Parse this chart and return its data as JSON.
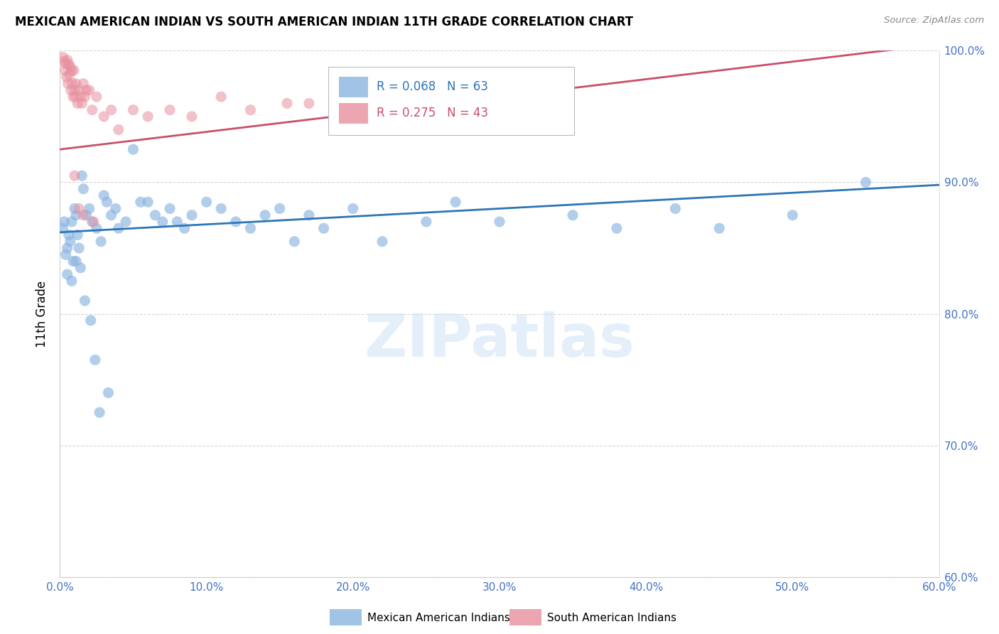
{
  "title": "MEXICAN AMERICAN INDIAN VS SOUTH AMERICAN INDIAN 11TH GRADE CORRELATION CHART",
  "source": "Source: ZipAtlas.com",
  "ylabel": "11th Grade",
  "xlim": [
    0.0,
    60.0
  ],
  "ylim": [
    60.0,
    100.0
  ],
  "blue_R": 0.068,
  "blue_N": 63,
  "pink_R": 0.275,
  "pink_N": 43,
  "blue_color": "#8ab4e0",
  "pink_color": "#e8909f",
  "blue_line_color": "#2e75b6",
  "pink_line_color": "#c94f6a",
  "legend_label_blue": "Mexican American Indians",
  "legend_label_pink": "South American Indians",
  "watermark": "ZIPatlas",
  "blue_x": [
    0.2,
    0.3,
    0.4,
    0.5,
    0.6,
    0.7,
    0.8,
    0.9,
    1.0,
    1.1,
    1.2,
    1.3,
    1.5,
    1.6,
    1.8,
    2.0,
    2.2,
    2.5,
    2.8,
    3.0,
    3.2,
    3.5,
    3.8,
    4.0,
    4.5,
    5.0,
    5.5,
    6.0,
    6.5,
    7.0,
    7.5,
    8.0,
    8.5,
    9.0,
    10.0,
    11.0,
    12.0,
    13.0,
    14.0,
    15.0,
    16.0,
    17.0,
    18.0,
    20.0,
    22.0,
    25.0,
    27.0,
    30.0,
    35.0,
    38.0,
    42.0,
    45.0,
    50.0,
    55.0,
    0.5,
    0.8,
    1.1,
    1.4,
    1.7,
    2.1,
    2.4,
    2.7,
    3.3
  ],
  "blue_y": [
    86.5,
    87.0,
    84.5,
    85.0,
    86.0,
    85.5,
    87.0,
    84.0,
    88.0,
    87.5,
    86.0,
    85.0,
    90.5,
    89.5,
    87.5,
    88.0,
    87.0,
    86.5,
    85.5,
    89.0,
    88.5,
    87.5,
    88.0,
    86.5,
    87.0,
    92.5,
    88.5,
    88.5,
    87.5,
    87.0,
    88.0,
    87.0,
    86.5,
    87.5,
    88.5,
    88.0,
    87.0,
    86.5,
    87.5,
    88.0,
    85.5,
    87.5,
    86.5,
    88.0,
    85.5,
    87.0,
    88.5,
    87.0,
    87.5,
    86.5,
    88.0,
    86.5,
    87.5,
    90.0,
    83.0,
    82.5,
    84.0,
    83.5,
    81.0,
    79.5,
    76.5,
    72.5,
    74.0
  ],
  "pink_x": [
    0.2,
    0.3,
    0.35,
    0.4,
    0.45,
    0.5,
    0.55,
    0.6,
    0.65,
    0.7,
    0.75,
    0.8,
    0.85,
    0.9,
    0.95,
    1.0,
    1.05,
    1.1,
    1.2,
    1.3,
    1.4,
    1.5,
    1.6,
    1.7,
    1.8,
    2.0,
    2.2,
    2.5,
    3.0,
    3.5,
    4.0,
    5.0,
    6.0,
    7.5,
    9.0,
    11.0,
    13.0,
    15.5,
    17.0,
    1.0,
    1.3,
    1.6,
    2.3
  ],
  "pink_y": [
    99.5,
    99.2,
    98.5,
    99.0,
    98.0,
    99.3,
    97.5,
    99.0,
    98.2,
    98.8,
    97.0,
    98.5,
    97.5,
    96.5,
    98.5,
    97.0,
    96.5,
    97.5,
    96.0,
    97.0,
    96.5,
    96.0,
    97.5,
    96.5,
    97.0,
    97.0,
    95.5,
    96.5,
    95.0,
    95.5,
    94.0,
    95.5,
    95.0,
    95.5,
    95.0,
    96.5,
    95.5,
    96.0,
    96.0,
    90.5,
    88.0,
    87.5,
    87.0
  ]
}
